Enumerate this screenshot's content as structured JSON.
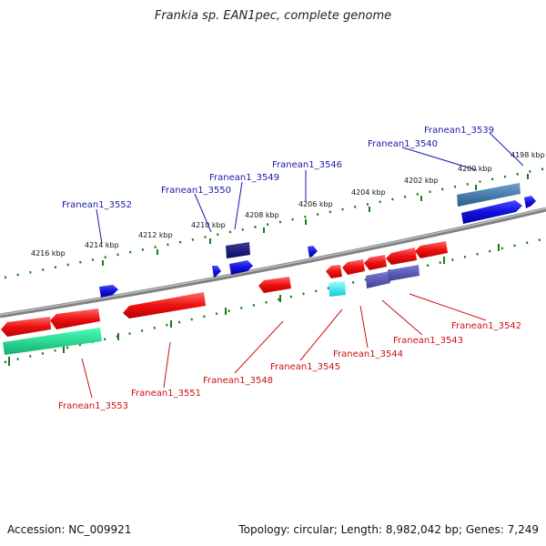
{
  "title": "Frankia sp. EAN1pec, complete genome",
  "footer": {
    "accession": "Accession: NC_009921",
    "summary": "Topology: circular; Length: 8,982,042 bp; Genes: 7,249"
  },
  "colors": {
    "backbone": "#808080",
    "tick_marks": "#1a7a1a",
    "forward_label": "#1a1aa8",
    "reverse_label": "#cc1111",
    "forward_gene": "#1111dd",
    "reverse_gene": "#ee1111"
  },
  "scale_ticks": [
    "4216 kbp",
    "4214 kbp",
    "4212 kbp",
    "4210 kbp",
    "4208 kbp",
    "4206 kbp",
    "4204 kbp",
    "4202 kbp",
    "4200 kbp",
    "4198 kbp"
  ],
  "forward_genes": [
    "Franean1_3552",
    "Franean1_3550",
    "Franean1_3549",
    "Franean1_3546",
    "Franean1_3540",
    "Franean1_3539"
  ],
  "reverse_genes": [
    "Franean1_3553",
    "Franean1_3551",
    "Franean1_3548",
    "Franean1_3545",
    "Franean1_3544",
    "Franean1_3543",
    "Franean1_3542"
  ]
}
